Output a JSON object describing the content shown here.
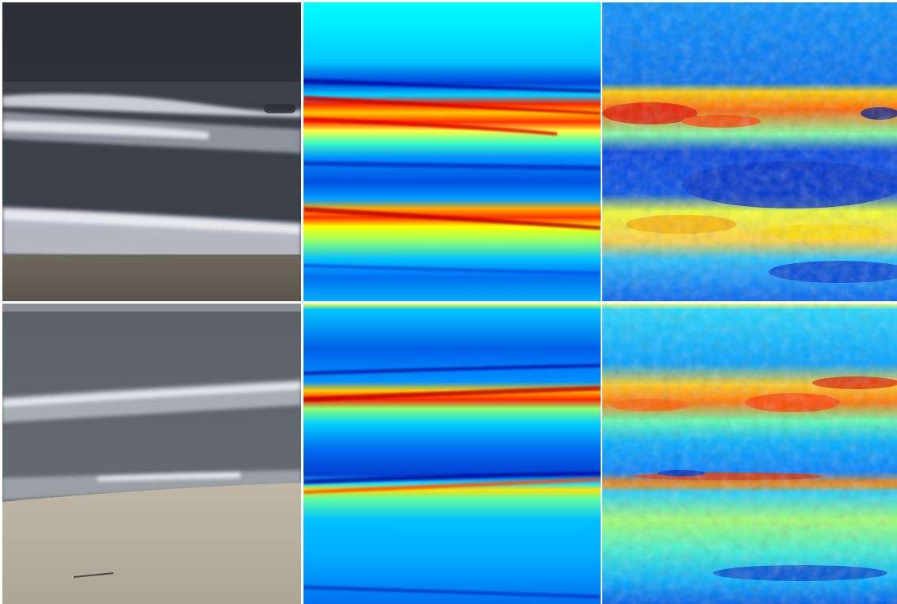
{
  "figure": {
    "rows": [
      {
        "id": "row-1",
        "panels": [
          {
            "kind": "photo",
            "icon": "beach-surf-photo-icon"
          },
          {
            "kind": "heatmap-horizontal-streaks",
            "icon": "heatmap-icon"
          },
          {
            "kind": "heatmap-texture",
            "icon": "heatmap-icon"
          }
        ]
      },
      {
        "id": "row-2",
        "panels": [
          {
            "kind": "photo",
            "icon": "beach-surf-photo-icon"
          },
          {
            "kind": "heatmap-horizontal-streaks",
            "icon": "heatmap-icon"
          },
          {
            "kind": "heatmap-texture",
            "icon": "heatmap-icon"
          }
        ]
      }
    ],
    "colormap": [
      "#00008f",
      "#0000ff",
      "#0080ff",
      "#00ffff",
      "#80ff80",
      "#ffff00",
      "#ff8000",
      "#ff0000",
      "#800000"
    ]
  }
}
